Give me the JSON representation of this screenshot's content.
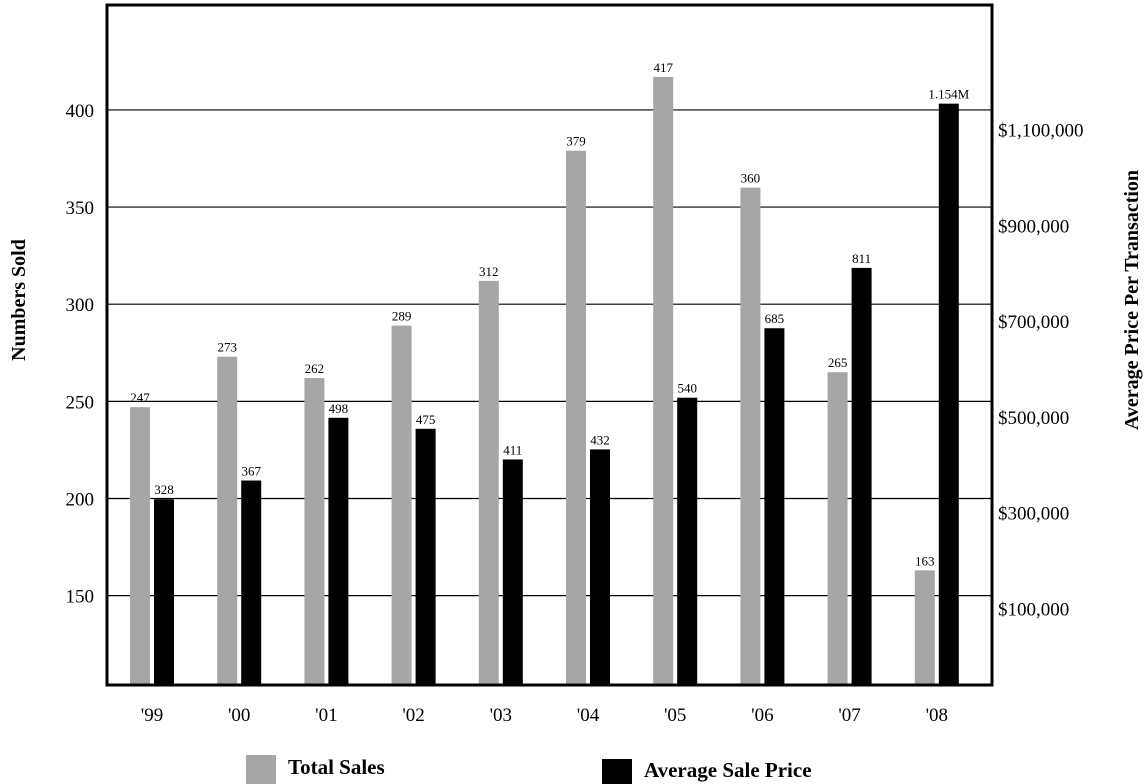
{
  "chart_data": {
    "type": "bar",
    "categories": [
      "'99",
      "'00",
      "'01",
      "'02",
      "'03",
      "'04",
      "'05",
      "'06",
      "'07",
      "'08"
    ],
    "series": [
      {
        "name": "Total Sales",
        "axis": "left",
        "color": "#a6a6a6",
        "values": [
          247,
          273,
          262,
          289,
          312,
          379,
          417,
          360,
          265,
          163
        ],
        "labels": [
          "247",
          "273",
          "262",
          "289",
          "312",
          "379",
          "417",
          "360",
          "265",
          "163"
        ]
      },
      {
        "name": "Average Sale Price",
        "axis": "right",
        "color": "#000000",
        "values": [
          328000,
          367000,
          498000,
          475000,
          411000,
          432000,
          540000,
          685000,
          811000,
          1154000
        ],
        "labels": [
          "328",
          "367",
          "498",
          "475",
          "411",
          "432",
          "540",
          "685",
          "811",
          "1.154M"
        ]
      }
    ],
    "ylabel": "Numbers Sold",
    "ylabel_right": "Average Price Per Transaction",
    "ylim": [
      104,
      454
    ],
    "ylim_right": [
      -60000,
      1360000
    ],
    "yticks": [
      150,
      200,
      250,
      300,
      350,
      400
    ],
    "ytick_labels": [
      "150",
      "200",
      "250",
      "300",
      "350",
      "400"
    ],
    "yticks_right": [
      100000,
      300000,
      500000,
      700000,
      900000,
      1100000
    ],
    "ytick_labels_right": [
      "$100,000",
      "$300,000",
      "$500,000",
      "$700,000",
      "$900,000",
      "$1,100,000"
    ],
    "grid": true,
    "legend": {
      "position": "bottom",
      "items": [
        {
          "label": "Total Sales",
          "color": "#a6a6a6"
        },
        {
          "label": "Average Sale Price",
          "color": "#000000"
        }
      ]
    }
  }
}
